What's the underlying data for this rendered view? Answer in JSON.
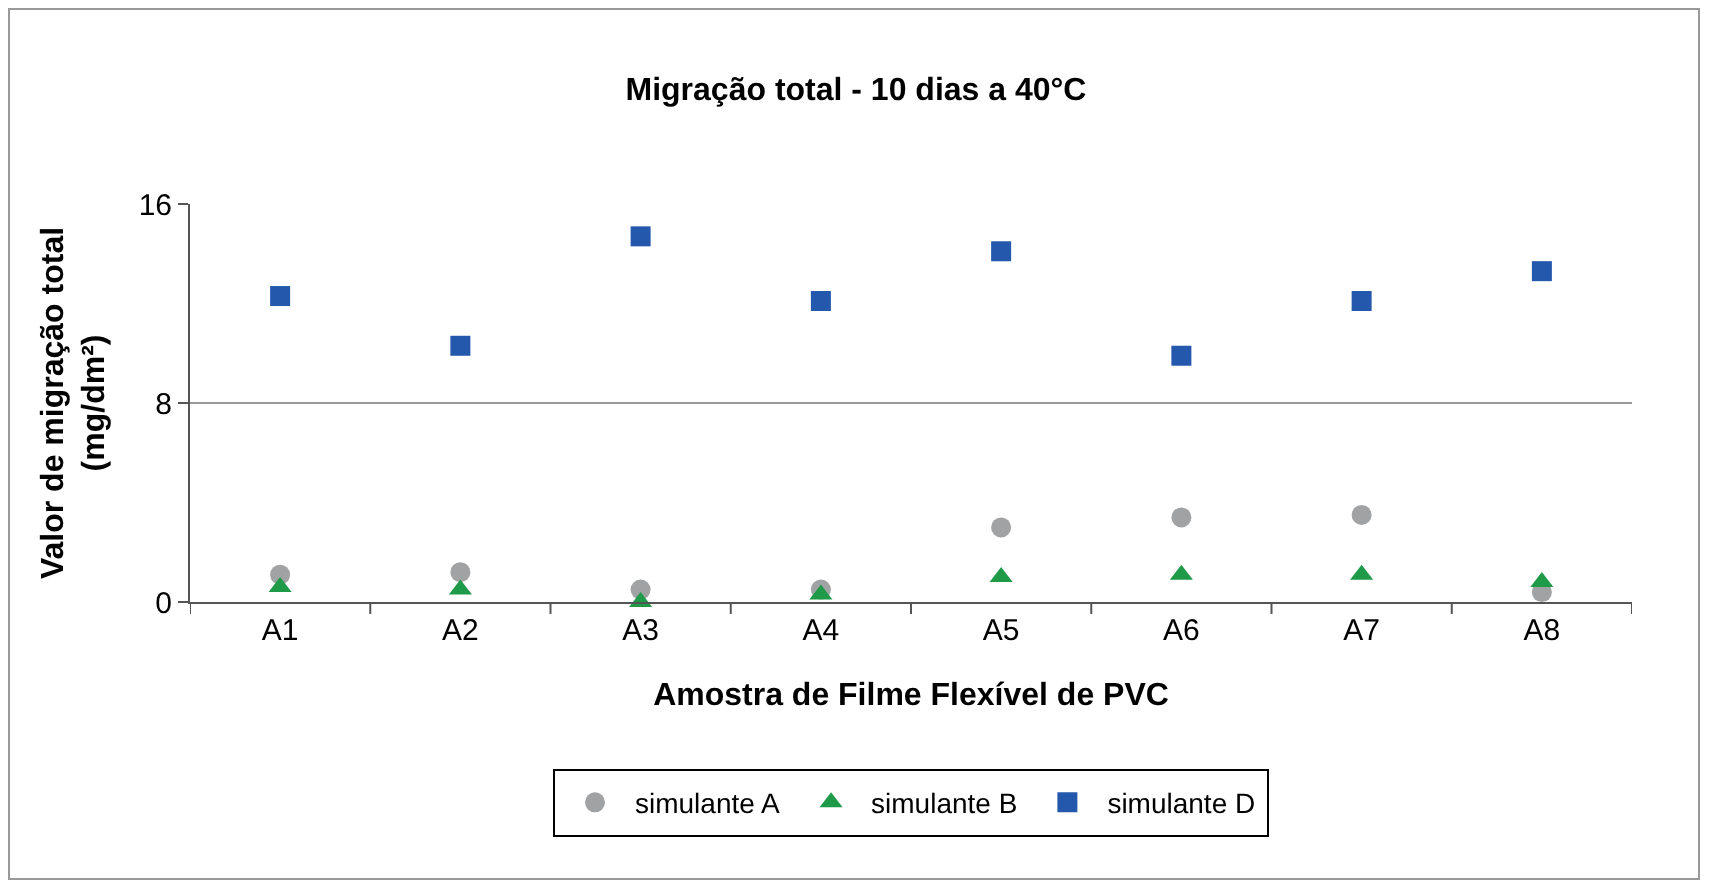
{
  "chart_data": {
    "type": "scatter",
    "title": "Migração total - 10 dias a 40°C",
    "xlabel": "Amostra de Filme Flexível de PVC",
    "ylabel": "Valor de migração total\n(mg/dm²)",
    "categories": [
      "A1",
      "A2",
      "A3",
      "A4",
      "A5",
      "A6",
      "A7",
      "A8"
    ],
    "series": [
      {
        "name": "simulante A",
        "color": "#a0a2a4",
        "marker": "circle",
        "values": [
          1.1,
          1.2,
          0.5,
          0.5,
          3.0,
          3.4,
          3.5,
          0.4
        ]
      },
      {
        "name": "simulante B",
        "color": "#1f9a48",
        "marker": "triangle",
        "values": [
          0.6,
          0.5,
          0.0,
          0.3,
          1.0,
          1.1,
          1.1,
          0.8
        ]
      },
      {
        "name": "simulante D",
        "color": "#2458ac",
        "marker": "square",
        "values": [
          12.3,
          10.3,
          14.7,
          12.1,
          14.1,
          9.9,
          12.1,
          13.3
        ]
      }
    ],
    "ylim": [
      0,
      16
    ],
    "yticks": [
      0,
      8,
      16
    ],
    "grid": "y",
    "legend": "bottom"
  }
}
